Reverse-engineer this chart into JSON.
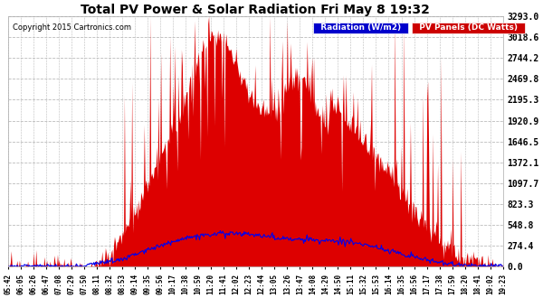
{
  "title": "Total PV Power & Solar Radiation Fri May 8 19:32",
  "copyright": "Copyright 2015 Cartronics.com",
  "legend_radiation": "Radiation (W/m2)",
  "legend_pv": "PV Panels (DC Watts)",
  "legend_radiation_bg": "#0000cc",
  "legend_pv_bg": "#cc0000",
  "background_color": "#ffffff",
  "plot_bg": "#ffffff",
  "grid_color": "#bbbbbb",
  "pv_color": "#dd0000",
  "radiation_color": "#0000ee",
  "ylim": [
    0,
    3293.0
  ],
  "yticks": [
    0.0,
    274.4,
    548.8,
    823.3,
    1097.7,
    1372.1,
    1646.5,
    1920.9,
    2195.3,
    2469.8,
    2744.2,
    3018.6,
    3293.0
  ],
  "xtick_labels": [
    "05:42",
    "06:05",
    "06:26",
    "06:47",
    "07:08",
    "07:29",
    "07:50",
    "08:11",
    "08:32",
    "08:53",
    "09:14",
    "09:35",
    "09:56",
    "10:17",
    "10:38",
    "10:59",
    "11:20",
    "11:41",
    "12:02",
    "12:23",
    "12:44",
    "13:05",
    "13:26",
    "13:47",
    "14:08",
    "14:29",
    "14:50",
    "15:11",
    "15:32",
    "15:53",
    "16:14",
    "16:35",
    "16:56",
    "17:17",
    "17:38",
    "17:59",
    "18:20",
    "18:41",
    "19:02",
    "19:23"
  ]
}
